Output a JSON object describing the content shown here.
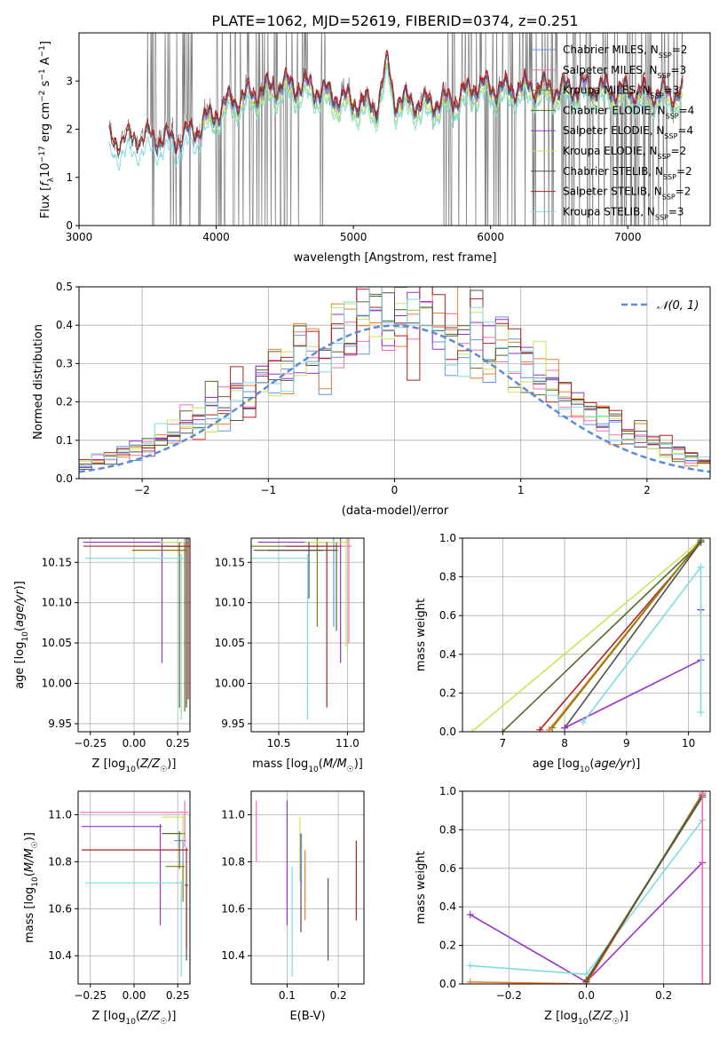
{
  "colors": {
    "chabrier_miles": "#6495ed",
    "salpeter_miles": "#ff69b4",
    "kroupa_miles": "#808000",
    "chabrier_elodie": "#556b2f",
    "salpeter_elodie": "#9932cc",
    "kroupa_elodie": "#c8e65a",
    "chabrier_stelib": "#505050",
    "salpeter_stelib": "#b22222",
    "kroupa_stelib": "#7fdbe0",
    "data": "#808080",
    "normal": "#5b8bd6",
    "orange": "#f08030"
  },
  "chart_data": [
    {
      "type": "line",
      "title": "PLATE=1062, MJD=52619, FIBERID=0374, z=0.251",
      "xlabel": "wavelength [Angstrom, rest frame]",
      "ylabel": "Flux [f_λ 10^-17 erg cm^-2 s^-1 A^-1]",
      "xlim": [
        3000,
        7600
      ],
      "ylim": [
        0,
        4
      ],
      "xticks": [
        "3000",
        "4000",
        "5000",
        "6000",
        "7000"
      ],
      "yticks": [
        "0",
        "1",
        "2",
        "3"
      ],
      "legend_position": "top-right",
      "legend": [
        {
          "label": "Chabrier MILES, N_SSP=2",
          "color_key": "chabrier_miles"
        },
        {
          "label": "Salpeter MILES, N_SSP=3",
          "color_key": "salpeter_miles"
        },
        {
          "label": "Kroupa MILES, N_SSP=3",
          "color_key": "kroupa_miles"
        },
        {
          "label": "Chabrier ELODIE, N_SSP=4",
          "color_key": "chabrier_elodie"
        },
        {
          "label": "Salpeter ELODIE, N_SSP=4",
          "color_key": "salpeter_elodie"
        },
        {
          "label": "Kroupa ELODIE, N_SSP=2",
          "color_key": "kroupa_elodie"
        },
        {
          "label": "Chabrier STELIB, N_SSP=2",
          "color_key": "chabrier_stelib"
        },
        {
          "label": "Salpeter STELIB, N_SSP=2",
          "color_key": "salpeter_stelib"
        },
        {
          "label": "Kroupa STELIB, N_SSP=3",
          "color_key": "kroupa_stelib"
        }
      ],
      "series_ranges": {
        "stelib_start": 3220,
        "miles_start": 3540,
        "elodie_start": 3900,
        "end": 7400
      },
      "continuum": [
        [
          3200,
          1.8
        ],
        [
          3500,
          1.9
        ],
        [
          3700,
          1.85
        ],
        [
          3950,
          2.2
        ],
        [
          4100,
          2.55
        ],
        [
          4300,
          2.75
        ],
        [
          4500,
          2.9
        ],
        [
          4700,
          2.85
        ],
        [
          4860,
          2.65
        ],
        [
          5000,
          2.55
        ],
        [
          5170,
          2.45
        ],
        [
          5250,
          3.35
        ],
        [
          5300,
          2.6
        ],
        [
          5500,
          2.5
        ],
        [
          5750,
          2.6
        ],
        [
          5900,
          2.9
        ],
        [
          6100,
          2.8
        ],
        [
          6300,
          2.85
        ],
        [
          6500,
          2.8
        ],
        [
          6700,
          2.85
        ],
        [
          7000,
          2.75
        ],
        [
          7400,
          2.7
        ]
      ],
      "noisy_regions": [
        [
          3500,
          3900
        ],
        [
          4000,
          4800
        ],
        [
          5650,
          7400
        ]
      ]
    },
    {
      "type": "bar",
      "xlabel": "(data-model)/error",
      "ylabel": "Normed distribution",
      "xlim": [
        -2.5,
        2.5
      ],
      "ylim": [
        0,
        0.5
      ],
      "xticks": [
        -2,
        -1,
        0,
        1,
        2
      ],
      "yticks": [
        0.0,
        0.1,
        0.2,
        0.3,
        0.4,
        0.5
      ],
      "legend": [
        {
          "label": "𝒩(0, 1)",
          "color_key": "normal"
        }
      ],
      "legend_position": "top-right",
      "bin_width": 0.1
    },
    {
      "type": "scatter",
      "xlabel": "Z [log10(Z/Z☉)]",
      "ylabel": "age  [log10(age/yr)]",
      "xlim": [
        -0.32,
        0.32
      ],
      "ylim": [
        9.94,
        10.18
      ],
      "xticks": [
        "-0.25",
        "0.00",
        "0.25"
      ],
      "yticks": [
        "9.95",
        "10.00",
        "10.05",
        "10.10",
        "10.15"
      ],
      "points": [
        {
          "color_key": "chabrier_miles",
          "x": 0.29,
          "xerr": [
            0.3,
            0.01
          ],
          "y": 10.17,
          "yerr": [
            0.2,
            0.01
          ]
        },
        {
          "color_key": "salpeter_miles",
          "x": 0.3,
          "xerr": [
            0.3,
            0.01
          ],
          "y": 10.175,
          "yerr": [
            0.2,
            0.005
          ]
        },
        {
          "color_key": "kroupa_miles",
          "x": 0.29,
          "xerr": [
            0.3,
            0.01
          ],
          "y": 10.165,
          "yerr": [
            0.2,
            0.01
          ]
        },
        {
          "color_key": "chabrier_elodie",
          "x": 0.26,
          "xerr": [
            0.12,
            0.02
          ],
          "y": 10.17,
          "yerr": [
            0.2,
            0.005
          ]
        },
        {
          "color_key": "salpeter_elodie",
          "x": 0.16,
          "xerr": [
            0.45,
            0.15
          ],
          "y": 10.175,
          "yerr": [
            0.15,
            0.005
          ]
        },
        {
          "color_key": "kroupa_elodie",
          "x": 0.3,
          "xerr": [
            0.15,
            0.01
          ],
          "y": 10.175,
          "yerr": [
            0.2,
            0.005
          ]
        },
        {
          "color_key": "chabrier_stelib",
          "x": 0.3,
          "xerr": [
            0.2,
            0.01
          ],
          "y": 10.17,
          "yerr": [
            0.2,
            0.01
          ]
        },
        {
          "color_key": "salpeter_stelib",
          "x": 0.31,
          "xerr": [
            0.6,
            0.01
          ],
          "y": 10.17,
          "yerr": [
            0.19,
            0.01
          ]
        },
        {
          "color_key": "kroupa_stelib",
          "x": 0.27,
          "xerr": [
            0.55,
            0.02
          ],
          "y": 10.155,
          "yerr": [
            0.2,
            0.005
          ]
        }
      ]
    },
    {
      "type": "scatter",
      "xlabel": "mass [log10(M/M☉)]",
      "ylabel": "",
      "xlim": [
        10.3,
        11.12
      ],
      "ylim": [
        9.94,
        10.18
      ],
      "xticks": [
        "10.5",
        "11.0"
      ],
      "yticks": [
        "9.95",
        "10.00",
        "10.05",
        "10.10",
        "10.15"
      ],
      "points": [
        {
          "color_key": "chabrier_miles",
          "x": 10.9,
          "xerr": [
            0.6,
            0.01
          ],
          "y": 10.17,
          "yerr": [
            0.1,
            0.01
          ]
        },
        {
          "color_key": "salpeter_miles",
          "x": 11.01,
          "xerr": [
            0.6,
            0.02
          ],
          "y": 10.17,
          "yerr": [
            0.12,
            0.01
          ]
        },
        {
          "color_key": "kroupa_miles",
          "x": 10.78,
          "xerr": [
            0.5,
            0.02
          ],
          "y": 10.17,
          "yerr": [
            0.1,
            0.01
          ]
        },
        {
          "color_key": "chabrier_elodie",
          "x": 10.92,
          "xerr": [
            0.6,
            0.01
          ],
          "y": 10.165,
          "yerr": [
            0.1,
            0.01
          ]
        },
        {
          "color_key": "salpeter_elodie",
          "x": 10.95,
          "xerr": [
            0.6,
            0.01
          ],
          "y": 10.175,
          "yerr": [
            0.15,
            0.005
          ]
        },
        {
          "color_key": "kroupa_elodie",
          "x": 10.99,
          "xerr": [
            0.3,
            0.02
          ],
          "y": 10.175,
          "yerr": [
            0.13,
            0.005
          ]
        },
        {
          "color_key": "chabrier_stelib",
          "x": 10.72,
          "xerr": [
            0.3,
            0.1
          ],
          "y": 10.165,
          "yerr": [
            0.06,
            0.01
          ]
        },
        {
          "color_key": "salpeter_stelib",
          "x": 10.85,
          "xerr": [
            0.3,
            0.1
          ],
          "y": 10.17,
          "yerr": [
            0.2,
            0.005
          ]
        },
        {
          "color_key": "kroupa_stelib",
          "x": 10.71,
          "xerr": [
            0.5,
            0.01
          ],
          "y": 10.155,
          "yerr": [
            0.2,
            0.005
          ]
        }
      ]
    },
    {
      "type": "line",
      "xlabel": "age  [log10(age/yr)]",
      "ylabel": "mass weight",
      "xlim": [
        6.35,
        10.35
      ],
      "ylim": [
        0,
        1
      ],
      "xticks": [
        "7",
        "8",
        "9",
        "10"
      ],
      "yticks": [
        "0.0",
        "0.2",
        "0.4",
        "0.6",
        "0.8",
        "1.0"
      ],
      "series": [
        {
          "color_key": "kroupa_elodie",
          "x": [
            6.5,
            10.2
          ],
          "y": [
            0.0,
            0.99
          ]
        },
        {
          "color_key": "chabrier_elodie",
          "x": [
            7.0,
            10.2
          ],
          "y": [
            0.0,
            0.98
          ]
        },
        {
          "color_key": "salpeter_stelib",
          "x": [
            7.6,
            10.2
          ],
          "y": [
            0.01,
            0.98
          ]
        },
        {
          "color_key": "orange",
          "x": [
            7.75,
            10.2
          ],
          "y": [
            0.01,
            0.99
          ]
        },
        {
          "color_key": "kroupa_miles",
          "x": [
            7.8,
            10.2
          ],
          "y": [
            0.02,
            0.99
          ]
        },
        {
          "color_key": "chabrier_stelib",
          "x": [
            8.0,
            10.2
          ],
          "y": [
            0.02,
            0.98
          ]
        },
        {
          "color_key": "salpeter_elodie",
          "x": [
            8.0,
            10.2
          ],
          "y": [
            0.02,
            0.37
          ]
        },
        {
          "color_key": "salpeter_elodie",
          "x": [
            10.2,
            10.2
          ],
          "y": [
            0.63,
            0.63
          ]
        },
        {
          "color_key": "kroupa_stelib",
          "x": [
            8.3,
            10.2
          ],
          "y": [
            0.05,
            0.85
          ]
        },
        {
          "color_key": "kroupa_stelib",
          "x": [
            10.2,
            10.2
          ],
          "y": [
            0.1,
            0.85
          ]
        }
      ]
    },
    {
      "type": "scatter",
      "xlabel": "Z [log10(Z/Z☉)]",
      "ylabel": "mass [log10(M/M☉)]",
      "xlim": [
        -0.32,
        0.32
      ],
      "ylim": [
        10.28,
        11.1
      ],
      "xticks": [
        "-0.25",
        "0.00",
        "0.25"
      ],
      "yticks": [
        "10.4",
        "10.6",
        "10.8",
        "11.0"
      ],
      "points": [
        {
          "color_key": "chabrier_miles",
          "x": 0.28,
          "xerr": [
            0.05,
            0.02
          ],
          "y": 10.89,
          "yerr": [
            0.1,
            0.01
          ]
        },
        {
          "color_key": "salpeter_miles",
          "x": 0.29,
          "xerr": [
            0.6,
            0.02
          ],
          "y": 11.01,
          "yerr": [
            0.15,
            0.05
          ]
        },
        {
          "color_key": "kroupa_miles",
          "x": 0.28,
          "xerr": [
            0.1,
            0.01
          ],
          "y": 10.78,
          "yerr": [
            0.15,
            0.01
          ]
        },
        {
          "color_key": "chabrier_elodie",
          "x": 0.26,
          "xerr": [
            0.1,
            0.03
          ],
          "y": 10.92,
          "yerr": [
            0.15,
            0.01
          ]
        },
        {
          "color_key": "salpeter_elodie",
          "x": 0.15,
          "xerr": [
            0.45,
            0.01
          ],
          "y": 10.95,
          "yerr": [
            0.42,
            0.01
          ]
        },
        {
          "color_key": "kroupa_elodie",
          "x": 0.28,
          "xerr": [
            0.12,
            0.02
          ],
          "y": 10.99,
          "yerr": [
            0.1,
            0.01
          ]
        },
        {
          "color_key": "chabrier_stelib",
          "x": 0.3,
          "xerr": [
            0.01,
            0.01
          ],
          "y": 10.7,
          "yerr": [
            0.32,
            0.01
          ]
        },
        {
          "color_key": "salpeter_stelib",
          "x": 0.3,
          "xerr": [
            0.6,
            0.01
          ],
          "y": 10.85,
          "yerr": [
            0.42,
            0.01
          ]
        },
        {
          "color_key": "kroupa_stelib",
          "x": 0.27,
          "xerr": [
            0.55,
            0.03
          ],
          "y": 10.71,
          "yerr": [
            0.4,
            0.01
          ]
        }
      ]
    },
    {
      "type": "scatter",
      "xlabel": "E(B-V)",
      "ylabel": "",
      "xlim": [
        0.03,
        0.25
      ],
      "ylim": [
        10.28,
        11.1
      ],
      "xticks": [
        "0.1",
        "0.2"
      ],
      "yticks": [
        "10.4",
        "10.6",
        "10.8",
        "11.0"
      ],
      "points": [
        {
          "color_key": "salpeter_miles",
          "x": 0.04,
          "y0": 10.8,
          "y1": 11.06
        },
        {
          "color_key": "salpeter_elodie",
          "x": 0.1,
          "y0": 10.53,
          "y1": 11.06
        },
        {
          "color_key": "kroupa_stelib",
          "x": 0.11,
          "y0": 10.31,
          "y1": 10.78
        },
        {
          "color_key": "kroupa_elodie",
          "x": 0.125,
          "y0": 10.72,
          "y1": 10.99
        },
        {
          "color_key": "chabrier_stelib",
          "x": 0.127,
          "y0": 10.5,
          "y1": 10.92
        },
        {
          "color_key": "chabrier_miles",
          "x": 0.128,
          "y0": 10.7,
          "y1": 10.92
        },
        {
          "color_key": "orange",
          "x": 0.135,
          "y0": 10.55,
          "y1": 10.85
        },
        {
          "color_key": "chabrier_stelib",
          "x": 0.18,
          "y0": 10.38,
          "y1": 10.73
        },
        {
          "color_key": "salpeter_stelib",
          "x": 0.235,
          "y0": 10.55,
          "y1": 10.89
        }
      ]
    },
    {
      "type": "line",
      "xlabel": "Z [log10(Z/Z☉)]",
      "ylabel": "mass weight",
      "xlim": [
        -0.32,
        0.32
      ],
      "ylim": [
        0,
        1
      ],
      "xticks": [
        "-0.2",
        "0.0",
        "0.2"
      ],
      "yticks": [
        "0.0",
        "0.2",
        "0.4",
        "0.6",
        "0.8",
        "1.0"
      ],
      "series": [
        {
          "color_key": "salpeter_elodie",
          "x": [
            -0.3,
            0.0,
            0.3
          ],
          "y": [
            0.36,
            0.01,
            0.63
          ]
        },
        {
          "color_key": "kroupa_stelib",
          "x": [
            -0.3,
            0.0,
            0.3
          ],
          "y": [
            0.095,
            0.05,
            0.85
          ]
        },
        {
          "color_key": "orange",
          "x": [
            -0.3,
            0.0,
            0.3
          ],
          "y": [
            0.01,
            0.0,
            0.99
          ]
        },
        {
          "color_key": "salpeter_stelib",
          "x": [
            0.0,
            0.3
          ],
          "y": [
            0.01,
            0.98
          ]
        },
        {
          "color_key": "chabrier_stelib",
          "x": [
            0.0,
            0.3
          ],
          "y": [
            0.02,
            0.97
          ]
        },
        {
          "color_key": "chabrier_elodie",
          "x": [
            0.0,
            0.3
          ],
          "y": [
            0.02,
            0.98
          ]
        },
        {
          "color_key": "salpeter_miles",
          "x": [
            0.3,
            0.3
          ],
          "y": [
            0.0,
            0.99
          ]
        }
      ]
    }
  ]
}
